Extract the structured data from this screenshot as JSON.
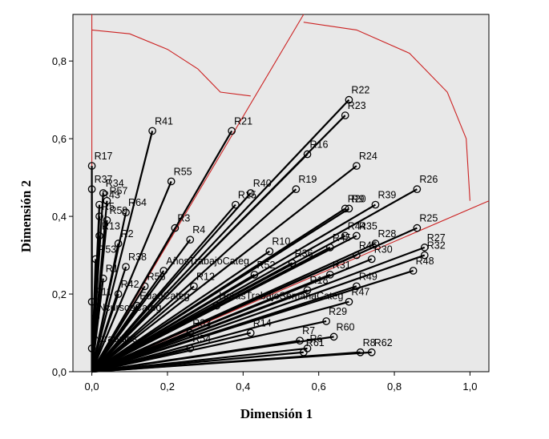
{
  "chart_data": {
    "type": "scatter",
    "subtype": "loading-vector-biplot",
    "xlabel": "Dimensión 1",
    "ylabel": "Dimensión 2",
    "xlim": [
      -0.05,
      1.05
    ],
    "ylim": [
      0.0,
      0.92
    ],
    "xticks": [
      "0,0",
      "0,2",
      "0,4",
      "0,6",
      "0,8",
      "1,0"
    ],
    "yticks": [
      "0,0",
      "0,2",
      "0,4",
      "0,6",
      "0,8"
    ],
    "grid": false,
    "background": "#e8e8e8",
    "colors": {
      "vector": "#000000",
      "reference": "#cc2222"
    },
    "reference_lines": [
      {
        "x": [
          0.0,
          0.0
        ],
        "y": [
          0.0,
          0.92
        ]
      },
      {
        "x": [
          0.0,
          0.56
        ],
        "y": [
          0.0,
          0.92
        ]
      },
      {
        "x": [
          0.0,
          1.05
        ],
        "y": [
          0.0,
          0.44
        ]
      }
    ],
    "reference_arcs": [
      {
        "x": [
          0.0,
          0.1,
          0.2,
          0.28,
          0.34,
          0.42
        ],
        "y": [
          0.88,
          0.87,
          0.83,
          0.78,
          0.72,
          0.71
        ]
      },
      {
        "x": [
          0.56,
          0.7,
          0.84,
          0.94,
          0.99,
          1.0
        ],
        "y": [
          0.9,
          0.88,
          0.82,
          0.72,
          0.6,
          0.44
        ]
      }
    ],
    "points": [
      {
        "label": "R22",
        "x": 0.68,
        "y": 0.7
      },
      {
        "label": "R23",
        "x": 0.67,
        "y": 0.66
      },
      {
        "label": "R41",
        "x": 0.16,
        "y": 0.62
      },
      {
        "label": "R21",
        "x": 0.37,
        "y": 0.62
      },
      {
        "label": "R16",
        "x": 0.57,
        "y": 0.56
      },
      {
        "label": "R24",
        "x": 0.7,
        "y": 0.53
      },
      {
        "label": "R17",
        "x": 0.0,
        "y": 0.53
      },
      {
        "label": "R34",
        "x": 0.03,
        "y": 0.46
      },
      {
        "label": "R55",
        "x": 0.21,
        "y": 0.49
      },
      {
        "label": "R40",
        "x": 0.42,
        "y": 0.46
      },
      {
        "label": "R19",
        "x": 0.54,
        "y": 0.47
      },
      {
        "label": "R26",
        "x": 0.86,
        "y": 0.47
      },
      {
        "label": "R20",
        "x": 0.67,
        "y": 0.42
      },
      {
        "label": "R9",
        "x": 0.68,
        "y": 0.42
      },
      {
        "label": "R39",
        "x": 0.75,
        "y": 0.43
      },
      {
        "label": "R37",
        "x": 0.0,
        "y": 0.47
      },
      {
        "label": "R43",
        "x": 0.02,
        "y": 0.43
      },
      {
        "label": "R57",
        "x": 0.04,
        "y": 0.44
      },
      {
        "label": "R64",
        "x": 0.09,
        "y": 0.41
      },
      {
        "label": "R5",
        "x": 0.02,
        "y": 0.4
      },
      {
        "label": "R59",
        "x": 0.04,
        "y": 0.39
      },
      {
        "label": "R3",
        "x": 0.22,
        "y": 0.37
      },
      {
        "label": "R15",
        "x": 0.38,
        "y": 0.43
      },
      {
        "label": "R44",
        "x": 0.67,
        "y": 0.35
      },
      {
        "label": "R25",
        "x": 0.86,
        "y": 0.37
      },
      {
        "label": "R27",
        "x": 0.88,
        "y": 0.32
      },
      {
        "label": "R4",
        "x": 0.26,
        "y": 0.34
      },
      {
        "label": "R13",
        "x": 0.02,
        "y": 0.35
      },
      {
        "label": "R2",
        "x": 0.07,
        "y": 0.33
      },
      {
        "label": "R10",
        "x": 0.47,
        "y": 0.31
      },
      {
        "label": "R35",
        "x": 0.7,
        "y": 0.35
      },
      {
        "label": "R28",
        "x": 0.75,
        "y": 0.33
      },
      {
        "label": "R45",
        "x": 0.63,
        "y": 0.32
      },
      {
        "label": "AñosTrabajoCateg",
        "x": 0.19,
        "y": 0.26
      },
      {
        "label": "R46",
        "x": 0.7,
        "y": 0.3
      },
      {
        "label": "R30",
        "x": 0.74,
        "y": 0.29
      },
      {
        "label": "R32",
        "x": 0.88,
        "y": 0.3
      },
      {
        "label": "R53",
        "x": 0.01,
        "y": 0.29
      },
      {
        "label": "R38",
        "x": 0.09,
        "y": 0.27
      },
      {
        "label": "R36",
        "x": 0.53,
        "y": 0.28
      },
      {
        "label": "R48",
        "x": 0.85,
        "y": 0.26
      },
      {
        "label": "R52",
        "x": 0.43,
        "y": 0.25
      },
      {
        "label": "R31",
        "x": 0.63,
        "y": 0.25
      },
      {
        "label": "R12",
        "x": 0.27,
        "y": 0.22
      },
      {
        "label": "R49",
        "x": 0.7,
        "y": 0.22
      },
      {
        "label": "R1",
        "x": 0.03,
        "y": 0.24
      },
      {
        "label": "R42",
        "x": 0.07,
        "y": 0.2
      },
      {
        "label": "R56",
        "x": 0.14,
        "y": 0.22
      },
      {
        "label": "R18",
        "x": 0.57,
        "y": 0.21
      },
      {
        "label": "R47",
        "x": 0.68,
        "y": 0.18
      },
      {
        "label": "R11",
        "x": 0.0,
        "y": 0.18
      },
      {
        "label": "EdadCateg",
        "x": 0.12,
        "y": 0.17
      },
      {
        "label": "HorasTrabajoSemanaCateg",
        "x": 0.33,
        "y": 0.17
      },
      {
        "label": "NcursosCateg",
        "x": 0.01,
        "y": 0.14
      },
      {
        "label": "R29",
        "x": 0.62,
        "y": 0.13
      },
      {
        "label": "R14",
        "x": 0.42,
        "y": 0.1
      },
      {
        "label": "R33",
        "x": 0.26,
        "y": 0.1
      },
      {
        "label": "R60",
        "x": 0.64,
        "y": 0.09
      },
      {
        "label": "R7",
        "x": 0.55,
        "y": 0.08
      },
      {
        "label": "R6",
        "x": 0.57,
        "y": 0.06
      },
      {
        "label": "R62",
        "x": 0.74,
        "y": 0.05
      },
      {
        "label": "R54",
        "x": 0.26,
        "y": 0.06
      },
      {
        "label": "Ntrabajos",
        "x": 0.0,
        "y": 0.06
      },
      {
        "label": "R61",
        "x": 0.56,
        "y": 0.05
      },
      {
        "label": "R8",
        "x": 0.71,
        "y": 0.05
      }
    ]
  }
}
